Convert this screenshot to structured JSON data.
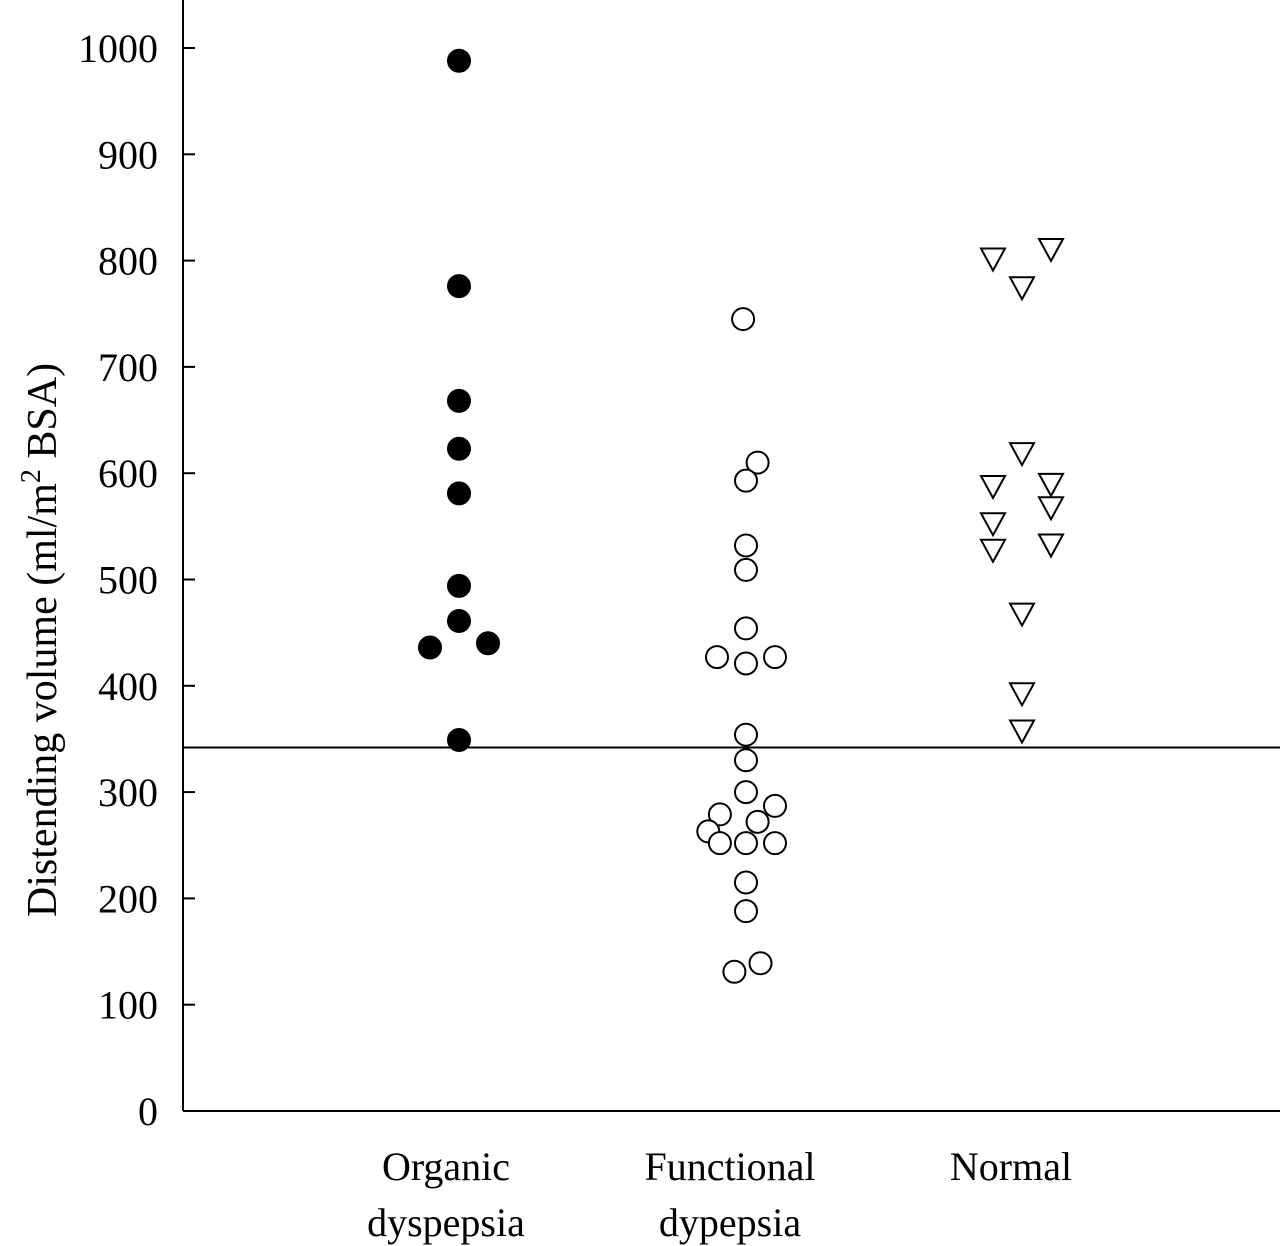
{
  "chart_data": {
    "type": "scatter",
    "subtype": "dot-plot",
    "ylabel_parts": {
      "prefix": "Distending volume (ml/m",
      "sup": "2",
      "suffix": " BSA)"
    },
    "ylim": [
      0,
      1000
    ],
    "yticks": [
      "0",
      "100",
      "200",
      "300",
      "400",
      "500",
      "600",
      "700",
      "800",
      "900",
      "1000"
    ],
    "categories": [
      {
        "line1": "Organic",
        "line2": "dyspepsia"
      },
      {
        "line1": "Functional",
        "line2": "dypepsia"
      },
      {
        "line1": "Normal",
        "line2": ""
      }
    ],
    "reference_line": 342,
    "grid": false,
    "series": [
      {
        "category_index": 0,
        "marker": "filled-circle",
        "values": [
          988,
          776,
          668,
          623,
          581,
          494,
          461,
          436,
          440,
          349
        ],
        "offsets": [
          0,
          0,
          0,
          0,
          0,
          0,
          0,
          -1,
          1,
          0
        ]
      },
      {
        "category_index": 1,
        "marker": "open-circle",
        "values": [
          745,
          610,
          593,
          532,
          509,
          454,
          427,
          421,
          427,
          354,
          330,
          300,
          287,
          279,
          272,
          263,
          252,
          252,
          252,
          215,
          188,
          139,
          131
        ],
        "offsets": [
          -0.1,
          0.4,
          0,
          0,
          0,
          0,
          -1,
          0,
          1,
          0,
          0,
          0,
          1,
          -0.9,
          0.4,
          -1.3,
          -0.9,
          0,
          1,
          0,
          0,
          0.5,
          -0.4
        ]
      },
      {
        "category_index": 2,
        "marker": "open-triangle-down",
        "values": [
          810,
          801,
          774,
          618,
          587,
          589,
          567,
          552,
          532,
          527,
          467,
          392,
          357
        ],
        "offsets": [
          1,
          -1,
          0,
          0,
          -1,
          1,
          1,
          -1,
          1,
          -1,
          0,
          0,
          0
        ]
      }
    ]
  }
}
